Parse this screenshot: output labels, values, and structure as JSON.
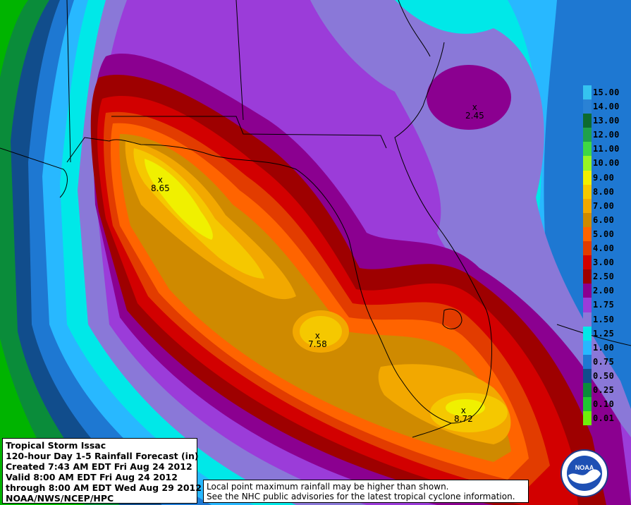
{
  "title_lines": [
    "Tropical Storm Issac",
    "120-hour Day 1-5 Rainfall Forecast (in)",
    "Created 7:43 AM EDT Fri Aug 24 2012",
    "Valid 8:00 AM EDT Fri Aug 24 2012",
    "through 8:00 AM EDT Wed Aug 29 2012",
    "NOAA/NWS/NCEP/HPC"
  ],
  "note_lines": [
    "Local point maximum rainfall may be higher than shown.",
    "See the NHC public advisories for the latest tropical cyclone information."
  ],
  "legend": [
    {
      "label": "15.00",
      "color": "#35c3f0"
    },
    {
      "label": "14.00",
      "color": "#2a82d5"
    },
    {
      "label": "13.00",
      "color": "#0d6b2f"
    },
    {
      "label": "12.00",
      "color": "#1fa14a"
    },
    {
      "label": "11.00",
      "color": "#3fd843"
    },
    {
      "label": "10.00",
      "color": "#97f523"
    },
    {
      "label": "9.00",
      "color": "#f0f000"
    },
    {
      "label": "8.00",
      "color": "#f5c800"
    },
    {
      "label": "7.00",
      "color": "#f2a800"
    },
    {
      "label": "6.00",
      "color": "#cf8a00"
    },
    {
      "label": "5.00",
      "color": "#ff6400"
    },
    {
      "label": "4.00",
      "color": "#e23c00"
    },
    {
      "label": "3.00",
      "color": "#d20000"
    },
    {
      "label": "2.50",
      "color": "#9e0000"
    },
    {
      "label": "2.00",
      "color": "#8b0090"
    },
    {
      "label": "1.75",
      "color": "#9b3cd9"
    },
    {
      "label": "1.50",
      "color": "#8a78d8"
    },
    {
      "label": "1.25",
      "color": "#00e8e8"
    },
    {
      "label": "1.00",
      "color": "#28b8ff"
    },
    {
      "label": "0.75",
      "color": "#1e78d2"
    },
    {
      "label": "0.50",
      "color": "#114d8c"
    },
    {
      "label": "0.25",
      "color": "#0a8c3a"
    },
    {
      "label": "0.10",
      "color": "#1ec832"
    },
    {
      "label": "0.01",
      "color": "#6ef00a"
    }
  ],
  "maxima": [
    {
      "label": "2.45"
    },
    {
      "label": "8.65"
    },
    {
      "label": "7.58"
    },
    {
      "label": "8.72"
    }
  ],
  "logo": {
    "text": "NOAA"
  },
  "colors": {
    "outer_green": "#00b400",
    "ocean_blue": "#1e78d2",
    "light_blue": "#28b8ff",
    "cyan": "#00e8e8",
    "lavender": "#8a78d8",
    "purple": "#9b3cd9",
    "magenta": "#8b0090",
    "dark_red": "#9e0000",
    "red": "#d20000",
    "orange_red": "#e23c00",
    "orange": "#ff6400",
    "dark_orange": "#cf8a00",
    "gold": "#f2a800",
    "yellow_orange": "#f5c800",
    "yellow": "#f0f000"
  }
}
